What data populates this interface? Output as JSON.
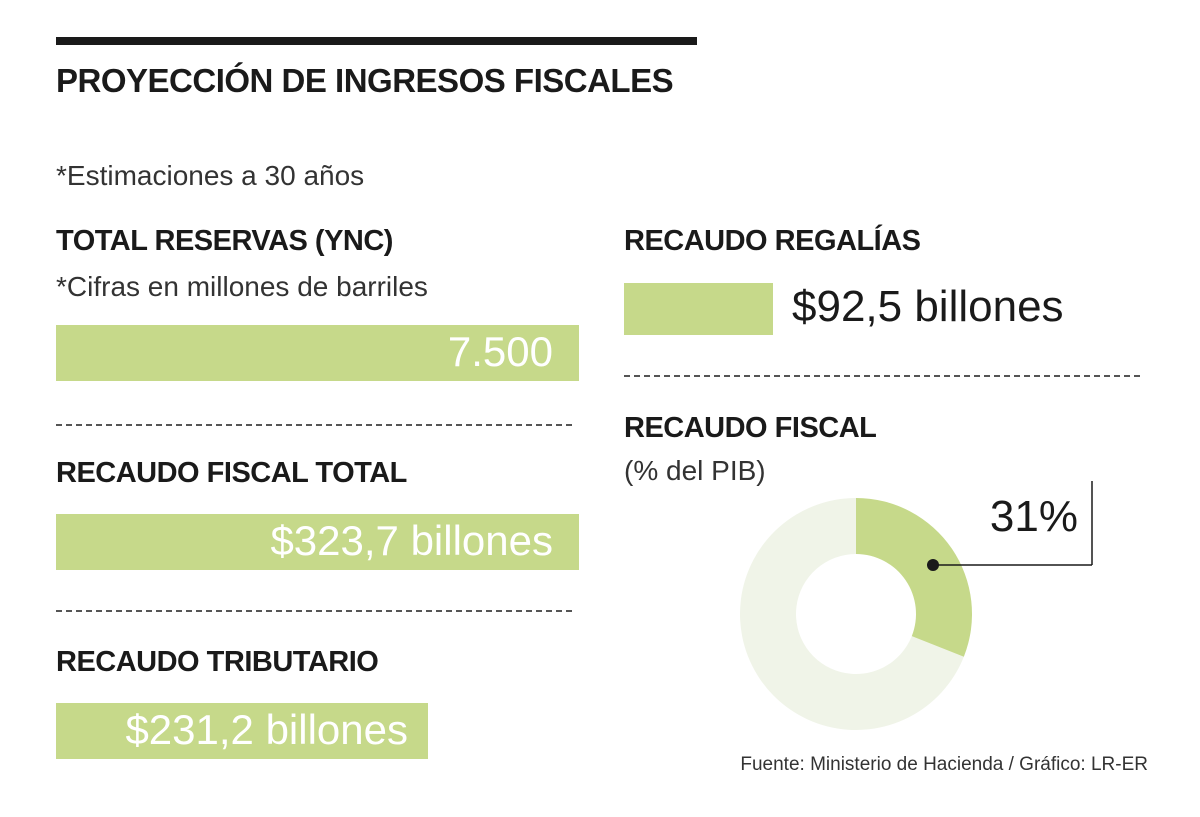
{
  "title": "PROYECCIÓN DE INGRESOS FISCALES",
  "subtitle": "*Estimaciones a 30 años",
  "colors": {
    "accent": "#c6d98a",
    "ring_bg": "#f0f4e8",
    "ink": "#1a1a1a"
  },
  "chart_data": [
    {
      "type": "bar",
      "title": "TOTAL RESERVAS (YNC)",
      "subtitle": "*Cifras en millones de barriles",
      "value": 7500,
      "label": "7.500"
    },
    {
      "type": "bar",
      "title": "RECAUDO FISCAL TOTAL",
      "value": 323.7,
      "label": "$323,7 billones"
    },
    {
      "type": "bar",
      "title": "RECAUDO TRIBUTARIO",
      "value": 231.2,
      "label": "$231,2 billones"
    },
    {
      "type": "bar",
      "title": "RECAUDO REGALÍAS",
      "value": 92.5,
      "label": "$92,5 billones"
    },
    {
      "type": "pie",
      "title": "RECAUDO FISCAL",
      "subtitle": "(% del PIB)",
      "value_pct": 31,
      "label": "31%"
    }
  ],
  "source": "Fuente: Ministerio de Hacienda / Gráfico: LR-ER"
}
